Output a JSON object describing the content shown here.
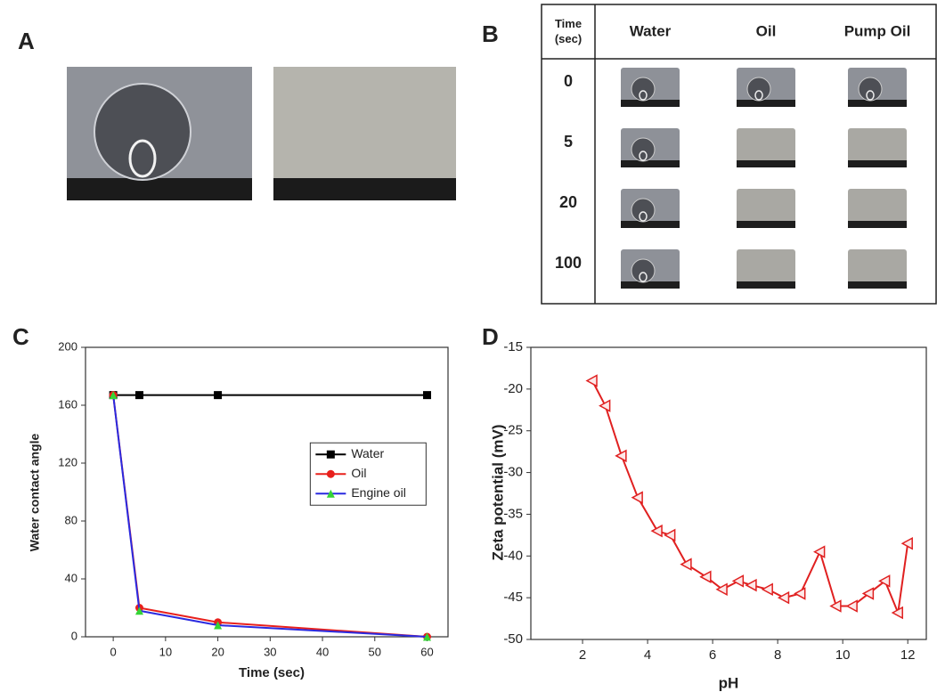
{
  "panels": {
    "a": "A",
    "b": "B",
    "c": "C",
    "d": "D"
  },
  "table": {
    "header": [
      "Time (sec)",
      "Water",
      "Oil",
      "Pump Oil"
    ],
    "rows": [
      "0",
      "5",
      "20",
      "100"
    ]
  },
  "chart_data": [
    {
      "type": "line",
      "xlabel": "Time (sec)",
      "ylabel": "Water contact angle",
      "x": [
        0,
        5,
        20,
        60
      ],
      "series": [
        {
          "name": "Water",
          "color": "#000000",
          "marker": "square",
          "values": [
            167,
            167,
            167,
            167
          ]
        },
        {
          "name": "Oil",
          "color": "#e8201c",
          "marker": "circle",
          "values": [
            167,
            20,
            10,
            0
          ]
        },
        {
          "name": "Engine oil",
          "color": "#2a2ae0",
          "marker_color": "#35d435",
          "marker": "triangle",
          "values": [
            167,
            18,
            8,
            0
          ]
        }
      ],
      "xlim": [
        -5.3,
        64
      ],
      "xticks": [
        0,
        10,
        20,
        30,
        40,
        50,
        60
      ],
      "ylim": [
        0,
        200
      ],
      "yticks": [
        0,
        40,
        80,
        120,
        160,
        200
      ],
      "legend": "center right"
    },
    {
      "type": "line",
      "xlabel": "pH",
      "ylabel": "Zeta potential (mV)",
      "x": [
        2.3,
        2.7,
        3.2,
        3.7,
        4.3,
        4.7,
        5.2,
        5.8,
        6.3,
        6.8,
        7.2,
        7.7,
        8.2,
        8.7,
        9.3,
        9.8,
        10.3,
        10.8,
        11.3,
        11.7,
        12.0
      ],
      "series": [
        {
          "color": "#e02020",
          "marker": "triangle-left",
          "values": [
            -19,
            -22,
            -28,
            -33,
            -37,
            -37.5,
            -41,
            -42.5,
            -44,
            -43,
            -43.5,
            -44,
            -45,
            -44.5,
            -39.5,
            -46,
            -46,
            -44.5,
            -43,
            -46.8,
            -38.5
          ]
        }
      ],
      "xlim": [
        0.41,
        12.57
      ],
      "xticks": [
        2,
        4,
        6,
        8,
        10,
        12
      ],
      "ylim": [
        -50,
        -15
      ],
      "yticks": [
        -50,
        -45,
        -40,
        -35,
        -30,
        -25,
        -20,
        -15
      ]
    }
  ]
}
